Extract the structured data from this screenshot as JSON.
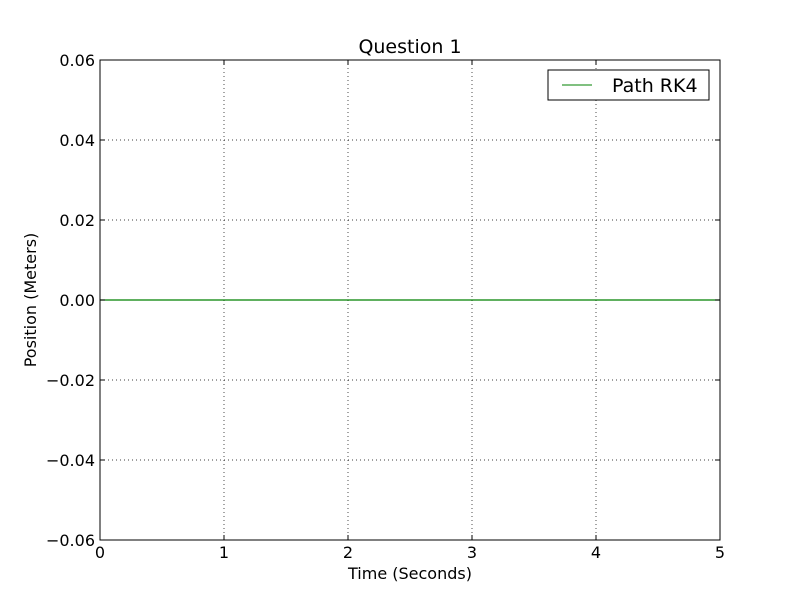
{
  "chart_data": {
    "type": "line",
    "title": "Question 1",
    "xlabel": "Time (Seconds)",
    "ylabel": "Position (Meters)",
    "xlim": [
      0,
      5
    ],
    "ylim": [
      -0.06,
      0.06
    ],
    "x_ticks": [
      0,
      1,
      2,
      3,
      4,
      5
    ],
    "x_tick_labels": [
      "0",
      "1",
      "2",
      "3",
      "4",
      "5"
    ],
    "y_ticks": [
      0.06,
      0.04,
      0.02,
      0.0,
      -0.02,
      -0.04,
      -0.06
    ],
    "y_tick_labels": [
      "0.06",
      "0.04",
      "0.02",
      "0.00",
      "−0.02",
      "−0.04",
      "−0.06"
    ],
    "grid": true,
    "legend_position": "top-right",
    "series": [
      {
        "name": "Path RK4",
        "color": "#008000",
        "x": [
          0,
          0.5,
          1,
          1.5,
          2,
          2.5,
          3,
          3.5,
          4,
          4.5,
          5
        ],
        "y": [
          0,
          0,
          0,
          0,
          0,
          0,
          0,
          0,
          0,
          0,
          0
        ]
      }
    ]
  }
}
